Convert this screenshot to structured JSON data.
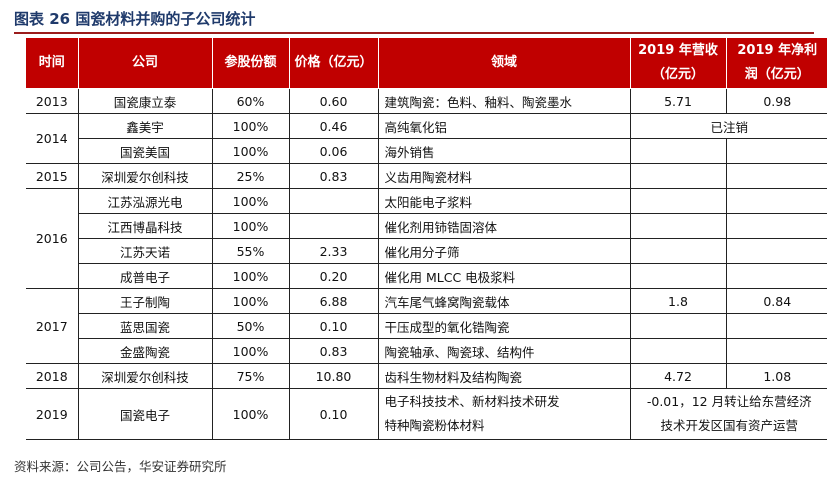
{
  "title": "图表 26  国瓷材料并购的子公司统计",
  "headers": {
    "time": "时间",
    "company": "公司",
    "stake": "参股份额",
    "price": "价格（亿元）",
    "field": "领域",
    "revenue_line1": "2019 年营收",
    "revenue_line2": "（亿元）",
    "profit_line1": "2019 年净利",
    "profit_line2": "润（亿元）"
  },
  "rows": [
    {
      "year": "2013",
      "company": "国瓷康立泰",
      "stake": "60%",
      "price": "0.60",
      "field": "建筑陶瓷：色料、釉料、陶瓷墨水",
      "revenue": "5.71",
      "profit": "0.98"
    },
    {
      "year": "2014",
      "company": "鑫美宇",
      "stake": "100%",
      "price": "0.46",
      "field": "高纯氧化铝",
      "note": "已注销"
    },
    {
      "company": "国瓷美国",
      "stake": "100%",
      "price": "0.06",
      "field": "海外销售"
    },
    {
      "year": "2015",
      "company": "深圳爱尔创科技",
      "stake": "25%",
      "price": "0.83",
      "field": "义齿用陶瓷材料"
    },
    {
      "year": "2016",
      "company": "江苏泓源光电",
      "stake": "100%",
      "price": "",
      "field": "太阳能电子浆料"
    },
    {
      "company": "江西博晶科技",
      "stake": "100%",
      "price": "",
      "field": "催化剂用铈锆固溶体"
    },
    {
      "company": "江苏天诺",
      "stake": "55%",
      "price": "2.33",
      "field": "催化用分子筛"
    },
    {
      "company": "成普电子",
      "stake": "100%",
      "price": "0.20",
      "field": "催化用 MLCC 电极浆料"
    },
    {
      "year": "2017",
      "company": "王子制陶",
      "stake": "100%",
      "price": "6.88",
      "field": "汽车尾气蜂窝陶瓷载体",
      "revenue": "1.8",
      "profit": "0.84"
    },
    {
      "company": "蓝思国瓷",
      "stake": "50%",
      "price": "0.10",
      "field": "干压成型的氧化锆陶瓷"
    },
    {
      "company": "金盛陶瓷",
      "stake": "100%",
      "price": "0.83",
      "field": "陶瓷轴承、陶瓷球、结构件"
    },
    {
      "year": "2018",
      "company": "深圳爱尔创科技",
      "stake": "75%",
      "price": "10.80",
      "field": "齿科生物材料及结构陶瓷",
      "revenue": "4.72",
      "profit": "1.08"
    },
    {
      "year": "2019",
      "company": "国瓷电子",
      "stake": "100%",
      "price": "0.10",
      "field_line1": "电子科技技术、新材料技术研发",
      "field_line2": "特种陶瓷粉体材料",
      "note_line1": "-0.01，12 月转让给东营经济",
      "note_line2": "技术开发区国有资产运营"
    }
  ],
  "source": "资料来源：公司公告，华安证券研究所"
}
